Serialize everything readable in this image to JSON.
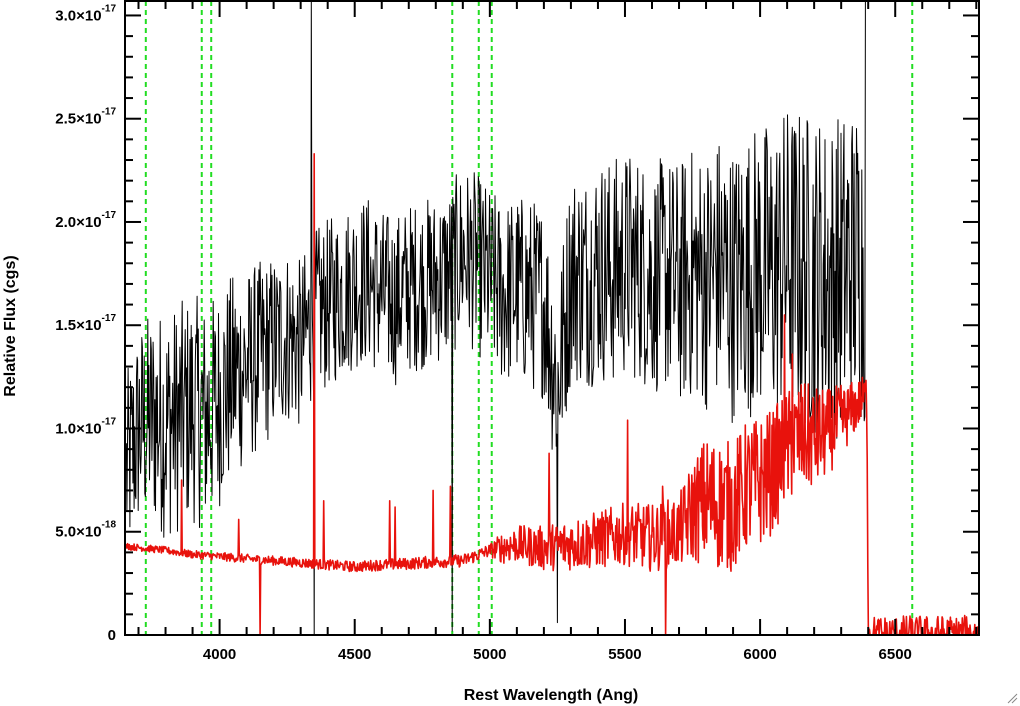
{
  "chart_data": {
    "type": "line",
    "title": "",
    "xlabel": "Rest Wavelength (Ang)",
    "ylabel": "Relative Flux (cgs)",
    "xlim": [
      3650,
      6810
    ],
    "ylim": [
      0,
      3.07e-17
    ],
    "grid": false,
    "x_ticks": [
      4000,
      4500,
      5000,
      5500,
      6000,
      6500
    ],
    "x_tick_labels": [
      "4000",
      "4500",
      "5000",
      "5500",
      "6000",
      "6500"
    ],
    "y_ticks": [
      {
        "value": 0,
        "mantissa": "0",
        "exponent": ""
      },
      {
        "value": 5e-18,
        "mantissa": "5.0×10",
        "exponent": "-18"
      },
      {
        "value": 1e-17,
        "mantissa": "1.0×10",
        "exponent": "-17"
      },
      {
        "value": 1.5e-17,
        "mantissa": "1.5×10",
        "exponent": "-17"
      },
      {
        "value": 2e-17,
        "mantissa": "2.0×10",
        "exponent": "-17"
      },
      {
        "value": 2.5e-17,
        "mantissa": "2.5×10",
        "exponent": "-17"
      },
      {
        "value": 3e-17,
        "mantissa": "3.0×10",
        "exponent": "-17"
      }
    ],
    "colors": {
      "spectrum": "#000000",
      "error": "#e8120c",
      "lines": "#22dd22",
      "axes": "#000000"
    },
    "reference_lines": [
      3727,
      3934,
      3969,
      4861,
      4959,
      5007,
      6563
    ],
    "series": [
      {
        "role": "spectrum",
        "points": [
          [
            3655,
            7.8e-18
          ],
          [
            3680,
            9e-18
          ],
          [
            3700,
            1e-17
          ],
          [
            3750,
            1.05e-17
          ],
          [
            3800,
            1.02e-17
          ],
          [
            3850,
            1.05e-17
          ],
          [
            3900,
            1.1e-17
          ],
          [
            3950,
            1.05e-17
          ],
          [
            4000,
            1.15e-17
          ],
          [
            4050,
            1.25e-17
          ],
          [
            4100,
            1.3e-17
          ],
          [
            4150,
            1.35e-17
          ],
          [
            4200,
            1.4e-17
          ],
          [
            4250,
            1.45e-17
          ],
          [
            4300,
            1.4e-17
          ],
          [
            4350,
            1.55e-17
          ],
          [
            4400,
            1.6e-17
          ],
          [
            4450,
            1.65e-17
          ],
          [
            4500,
            1.7e-17
          ],
          [
            4550,
            1.72e-17
          ],
          [
            4600,
            1.65e-17
          ],
          [
            4650,
            1.62e-17
          ],
          [
            4700,
            1.68e-17
          ],
          [
            4750,
            1.7e-17
          ],
          [
            4800,
            1.72e-17
          ],
          [
            4850,
            1.75e-17
          ],
          [
            4900,
            1.85e-17
          ],
          [
            4950,
            1.8e-17
          ],
          [
            5000,
            1.72e-17
          ],
          [
            5050,
            1.65e-17
          ],
          [
            5100,
            1.68e-17
          ],
          [
            5150,
            1.65e-17
          ],
          [
            5200,
            1.62e-17
          ],
          [
            5250,
            1.2e-17
          ],
          [
            5300,
            1.75e-17
          ],
          [
            5350,
            1.72e-17
          ],
          [
            5400,
            1.78e-17
          ],
          [
            5450,
            1.75e-17
          ],
          [
            5500,
            1.8e-17
          ],
          [
            5550,
            1.78e-17
          ],
          [
            5600,
            1.72e-17
          ],
          [
            5650,
            1.75e-17
          ],
          [
            5700,
            1.7e-17
          ],
          [
            5750,
            1.75e-17
          ],
          [
            5800,
            1.72e-17
          ],
          [
            5850,
            1.78e-17
          ],
          [
            5900,
            1.7e-17
          ],
          [
            5950,
            1.75e-17
          ],
          [
            6000,
            1.78e-17
          ],
          [
            6050,
            1.75e-17
          ],
          [
            6100,
            1.82e-17
          ],
          [
            6150,
            1.78e-17
          ],
          [
            6200,
            1.75e-17
          ],
          [
            6250,
            1.72e-17
          ],
          [
            6300,
            1.75e-17
          ],
          [
            6350,
            1.8e-17
          ],
          [
            6390,
            1.8e-17
          ]
        ],
        "noise": [
          [
            3655,
            3e-18
          ],
          [
            3800,
            3.5e-18
          ],
          [
            3950,
            3.5e-18
          ],
          [
            4100,
            3e-18
          ],
          [
            4300,
            2.6e-18
          ],
          [
            4500,
            2.6e-18
          ],
          [
            4800,
            2.6e-18
          ],
          [
            5000,
            2.8e-18
          ],
          [
            5200,
            3e-18
          ],
          [
            5400,
            3.5e-18
          ],
          [
            5600,
            3.5e-18
          ],
          [
            5800,
            4e-18
          ],
          [
            6000,
            4.5e-18
          ],
          [
            6200,
            5e-18
          ],
          [
            6390,
            5e-18
          ]
        ],
        "spikes": [
          [
            4340,
            3.07e-17
          ],
          [
            4350,
            0
          ],
          [
            4861,
            2e-19
          ],
          [
            5250,
            6e-19
          ],
          [
            6398,
            3.07e-17
          ]
        ]
      },
      {
        "role": "error",
        "points": [
          [
            3655,
            4.3e-18
          ],
          [
            3800,
            4.1e-18
          ],
          [
            3900,
            3.9e-18
          ],
          [
            4000,
            3.8e-18
          ],
          [
            4100,
            3.7e-18
          ],
          [
            4200,
            3.6e-18
          ],
          [
            4300,
            3.5e-18
          ],
          [
            4400,
            3.4e-18
          ],
          [
            4500,
            3.3e-18
          ],
          [
            4600,
            3.4e-18
          ],
          [
            4700,
            3.45e-18
          ],
          [
            4800,
            3.55e-18
          ],
          [
            4900,
            3.6e-18
          ],
          [
            5000,
            4.1e-18
          ],
          [
            5100,
            4.4e-18
          ],
          [
            5200,
            4.2e-18
          ],
          [
            5300,
            4.4e-18
          ],
          [
            5400,
            4.6e-18
          ],
          [
            5500,
            4.9e-18
          ],
          [
            5600,
            4.7e-18
          ],
          [
            5700,
            5e-18
          ],
          [
            5750,
            6e-18
          ],
          [
            5800,
            6.5e-18
          ],
          [
            5850,
            6.3e-18
          ],
          [
            5900,
            6.2e-18
          ],
          [
            5950,
            7.2e-18
          ],
          [
            6000,
            7.4e-18
          ],
          [
            6050,
            8e-18
          ],
          [
            6100,
            9e-18
          ],
          [
            6150,
            9.6e-18
          ],
          [
            6200,
            9.5e-18
          ],
          [
            6250,
            9.8e-18
          ],
          [
            6300,
            1.04e-17
          ],
          [
            6350,
            1.1e-17
          ],
          [
            6395,
            1.17e-17
          ],
          [
            6400,
            0
          ],
          [
            6810,
            0
          ]
        ],
        "noise": [
          [
            3655,
            1e-19
          ],
          [
            5000,
            2e-19
          ],
          [
            5050,
            5e-19
          ],
          [
            5300,
            8e-19
          ],
          [
            5700,
            1.1e-18
          ],
          [
            5800,
            2e-18
          ],
          [
            6000,
            2e-18
          ],
          [
            6200,
            1.6e-18
          ],
          [
            6395,
            6e-19
          ]
        ],
        "spikes": [
          [
            3860,
            7.5e-18
          ],
          [
            4070,
            5.6e-18
          ],
          [
            4150,
            0
          ],
          [
            4350,
            2.33e-17
          ],
          [
            4385,
            6.5e-18
          ],
          [
            4630,
            6.5e-18
          ],
          [
            4650,
            6.2e-18
          ],
          [
            4790,
            7e-18
          ],
          [
            4855,
            7.2e-18
          ],
          [
            5220,
            8.8e-18
          ],
          [
            5510,
            1.04e-17
          ],
          [
            5650,
            0
          ],
          [
            6090,
            1.55e-17
          ],
          [
            6120,
            1.36e-17
          ],
          [
            5640,
            7.2e-18
          ]
        ]
      }
    ]
  }
}
